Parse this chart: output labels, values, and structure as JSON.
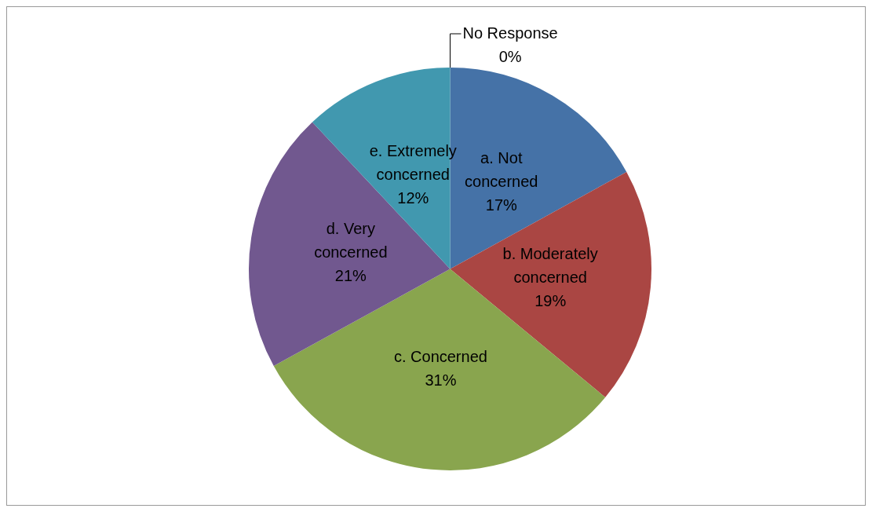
{
  "chart_data": {
    "type": "pie",
    "categories": [
      "a. Not concerned",
      "b. Moderately concerned",
      "c. Concerned",
      "d. Very concerned",
      "e. Extremely concerned",
      "No Response"
    ],
    "values": [
      17,
      19,
      31,
      21,
      12,
      0
    ],
    "value_labels": [
      "17%",
      "19%",
      "31%",
      "21%",
      "12%",
      "0%"
    ],
    "colors": [
      "#4572a7",
      "#aa4643",
      "#89a54e",
      "#71588f",
      "#4198af",
      "#db843d"
    ],
    "legend": false
  }
}
